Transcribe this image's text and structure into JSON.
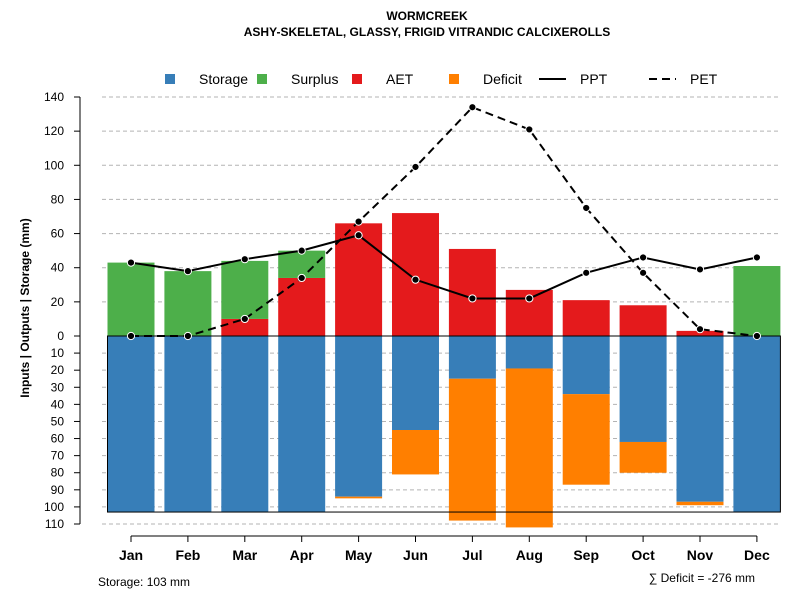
{
  "chart_data": {
    "type": "bar",
    "title": "WORMCREEK",
    "subtitle": "ASHY-SKELETAL, GLASSY, FRIGID VITRANDIC CALCIXEROLLS",
    "ylabel": "Inputs | Outputs | Storage    (mm)",
    "categories": [
      "Jan",
      "Feb",
      "Mar",
      "Apr",
      "May",
      "Jun",
      "Jul",
      "Aug",
      "Sep",
      "Oct",
      "Nov",
      "Dec"
    ],
    "upper_ylim": [
      0,
      140
    ],
    "upper_ticks": [
      "0",
      "20",
      "40",
      "60",
      "80",
      "100",
      "120",
      "140"
    ],
    "lower_ylim": [
      0,
      110
    ],
    "lower_ticks": [
      "0",
      "10",
      "20",
      "30",
      "40",
      "50",
      "60",
      "70",
      "80",
      "90",
      "100",
      "110"
    ],
    "legend": [
      {
        "name": "Storage",
        "kind": "box",
        "color": "#377EB8"
      },
      {
        "name": "Surplus",
        "kind": "box",
        "color": "#4DAF4A"
      },
      {
        "name": "AET",
        "kind": "box",
        "color": "#E41A1C"
      },
      {
        "name": "Deficit",
        "kind": "box",
        "color": "#FF7F00"
      },
      {
        "name": "PPT",
        "kind": "solid",
        "color": "#000000"
      },
      {
        "name": "PET",
        "kind": "dashed",
        "color": "#000000"
      }
    ],
    "series": [
      {
        "name": "AET",
        "color": "#E41A1C",
        "values": [
          0,
          0,
          10,
          34,
          66,
          72,
          51,
          27,
          21,
          18,
          3,
          0
        ]
      },
      {
        "name": "Surplus",
        "color": "#4DAF4A",
        "values": [
          43,
          38,
          34,
          16,
          0,
          0,
          0,
          0,
          0,
          0,
          0,
          41
        ]
      },
      {
        "name": "Storage",
        "color": "#377EB8",
        "values": [
          103,
          103,
          103,
          103,
          94,
          55,
          25,
          19,
          34,
          62,
          97,
          103
        ]
      },
      {
        "name": "Deficit",
        "color": "#FF7F00",
        "values": [
          0,
          0,
          0,
          0,
          1,
          26,
          83,
          93,
          53,
          18,
          2,
          0
        ]
      },
      {
        "name": "PPT",
        "color": "#000000",
        "values": [
          43,
          38,
          45,
          50,
          59,
          33,
          22,
          22,
          37,
          46,
          39,
          46
        ]
      },
      {
        "name": "PET",
        "color": "#000000",
        "values": [
          0,
          0,
          10,
          34,
          67,
          99,
          134,
          121,
          75,
          37,
          4,
          0
        ]
      }
    ],
    "storage_capacity": 103
  },
  "notes": {
    "storage": "Storage: 103 mm",
    "deficit": "∑ Deficit = -276 mm"
  }
}
